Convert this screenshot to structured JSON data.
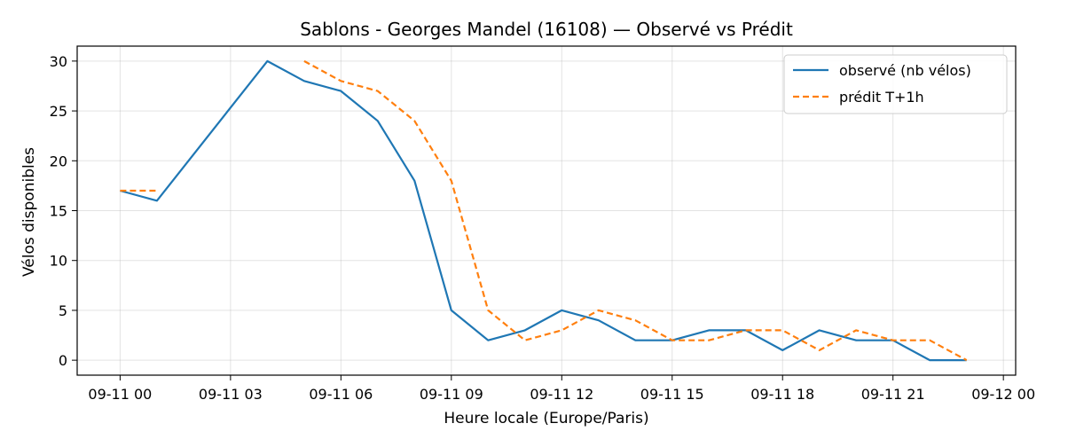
{
  "chart_data": {
    "type": "line",
    "title": "Sablons - Georges Mandel (16108) — Observé vs Prédit",
    "xlabel": "Heure locale (Europe/Paris)",
    "ylabel": "Vélos disponibles",
    "xlim": [
      "2024-09-10 22:50",
      "2024-09-12 00:20"
    ],
    "ylim": [
      -1.5,
      31.5
    ],
    "x_ticks": [
      "09-11 00",
      "09-11 03",
      "09-11 06",
      "09-11 09",
      "09-11 12",
      "09-11 15",
      "09-11 18",
      "09-11 21",
      "09-12 00"
    ],
    "x_tick_values": [
      "2024-09-11 00:00",
      "2024-09-11 03:00",
      "2024-09-11 06:00",
      "2024-09-11 09:00",
      "2024-09-11 12:00",
      "2024-09-11 15:00",
      "2024-09-11 18:00",
      "2024-09-11 21:00",
      "2024-09-12 00:00"
    ],
    "y_ticks": [
      0,
      5,
      10,
      15,
      20,
      25,
      30
    ],
    "grid": true,
    "legend_position": "top-right",
    "series": [
      {
        "name": "observé (nb vélos)",
        "color": "#1f77b4",
        "style": "solid",
        "x": [
          "2024-09-11 00:00",
          "2024-09-11 01:00",
          "2024-09-11 04:00",
          "2024-09-11 05:00",
          "2024-09-11 06:00",
          "2024-09-11 07:00",
          "2024-09-11 08:00",
          "2024-09-11 09:00",
          "2024-09-11 10:00",
          "2024-09-11 11:00",
          "2024-09-11 12:00",
          "2024-09-11 13:00",
          "2024-09-11 14:00",
          "2024-09-11 15:00",
          "2024-09-11 16:00",
          "2024-09-11 17:00",
          "2024-09-11 18:00",
          "2024-09-11 19:00",
          "2024-09-11 20:00",
          "2024-09-11 21:00",
          "2024-09-11 22:00",
          "2024-09-11 23:00"
        ],
        "y": [
          17,
          16,
          30,
          28,
          27,
          24,
          18,
          5,
          2,
          3,
          5,
          4,
          2,
          2,
          3,
          3,
          1,
          3,
          2,
          2,
          0,
          0
        ]
      },
      {
        "name": "prédit T+1h",
        "color": "#ff7f0e",
        "style": "dashed",
        "segments": [
          {
            "x": [
              "2024-09-11 00:00",
              "2024-09-11 01:00"
            ],
            "y": [
              17,
              17
            ]
          },
          {
            "x": [
              "2024-09-11 05:00",
              "2024-09-11 06:00",
              "2024-09-11 07:00",
              "2024-09-11 08:00",
              "2024-09-11 09:00",
              "2024-09-11 10:00",
              "2024-09-11 11:00",
              "2024-09-11 12:00",
              "2024-09-11 13:00",
              "2024-09-11 14:00",
              "2024-09-11 15:00",
              "2024-09-11 16:00",
              "2024-09-11 17:00",
              "2024-09-11 18:00",
              "2024-09-11 19:00",
              "2024-09-11 20:00",
              "2024-09-11 21:00",
              "2024-09-11 22:00",
              "2024-09-11 23:00"
            ],
            "y": [
              30,
              28,
              27,
              24,
              18,
              5,
              2,
              3,
              5,
              4,
              2,
              2,
              3,
              3,
              1,
              3,
              2,
              2,
              0
            ]
          }
        ]
      }
    ]
  }
}
